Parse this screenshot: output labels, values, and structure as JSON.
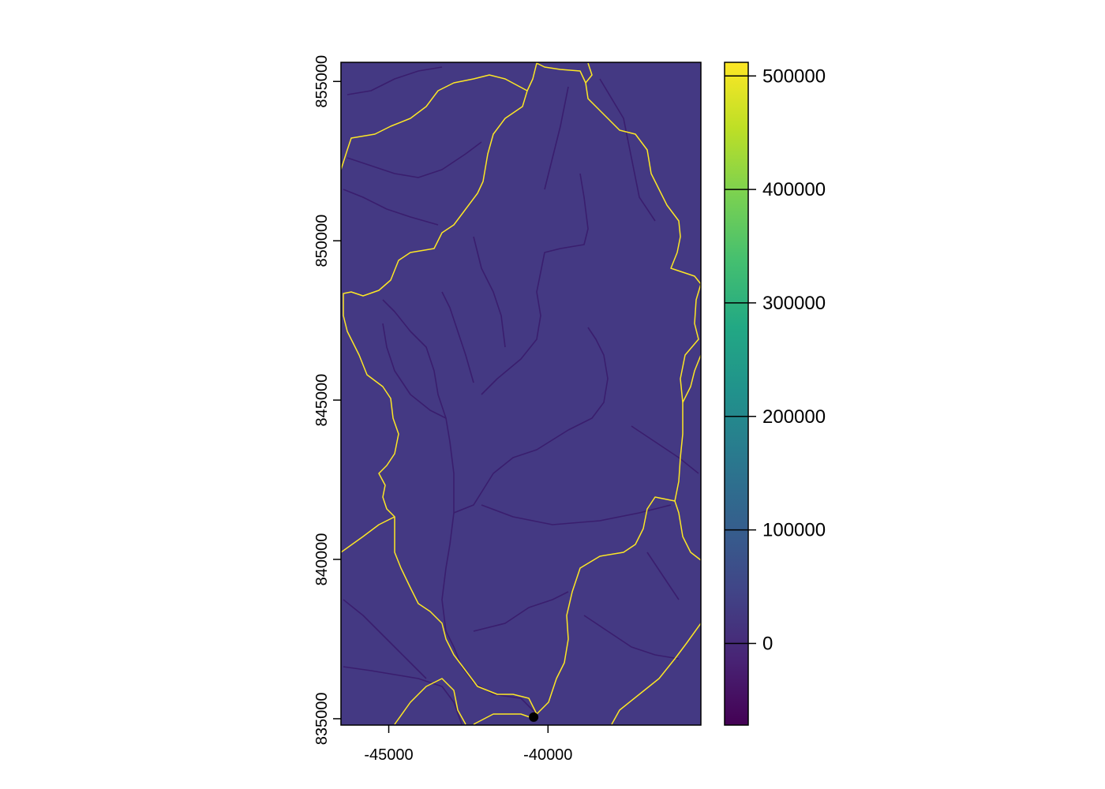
{
  "map": {
    "x_range": [
      -46500,
      -35200
    ],
    "y_range": [
      834800,
      855600
    ],
    "background_color": "#443983",
    "boundary_color": "#FDE725",
    "stream_color": "#3a1e6e",
    "outlet": {
      "x": -40450,
      "y": 835050
    },
    "x_ticks": [
      {
        "value": -45000,
        "label": "-45000"
      },
      {
        "value": -40000,
        "label": "-40000"
      }
    ],
    "y_ticks": [
      {
        "value": 835000,
        "label": "835000"
      },
      {
        "value": 840000,
        "label": "840000"
      },
      {
        "value": 845000,
        "label": "845000"
      },
      {
        "value": 850000,
        "label": "850000"
      },
      {
        "value": 855000,
        "label": "855000"
      }
    ]
  },
  "legend": {
    "range": [
      -72000,
      512000
    ],
    "palette": "viridis",
    "ticks": [
      {
        "value": 0,
        "label": "0"
      },
      {
        "value": 100000,
        "label": "100000"
      },
      {
        "value": 200000,
        "label": "200000"
      },
      {
        "value": 300000,
        "label": "300000"
      },
      {
        "value": 400000,
        "label": "400000"
      },
      {
        "value": 500000,
        "label": "500000"
      }
    ]
  }
}
